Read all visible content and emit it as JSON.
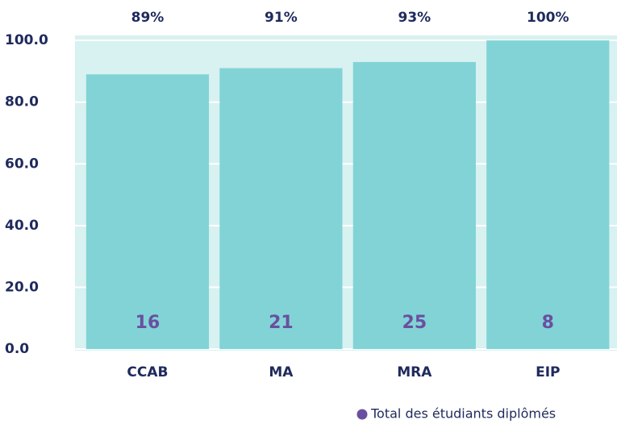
{
  "chart_data": {
    "type": "bar",
    "categories": [
      "CCAB",
      "MA",
      "MRA",
      "EIP"
    ],
    "values": [
      89,
      91,
      93,
      100
    ],
    "value_labels": [
      "89%",
      "91%",
      "93%",
      "100%"
    ],
    "color": "#82d3d6",
    "inner_labels": [
      16,
      21,
      25,
      8
    ],
    "inner_label_color": "#6a4fa0",
    "legend": "Total des étudiants diplômés",
    "ylim": [
      0,
      101.6
    ],
    "yticks": [
      {
        "value": 0,
        "label": "0.0"
      },
      {
        "value": 20,
        "label": "20.0"
      },
      {
        "value": 40,
        "label": "40.0"
      },
      {
        "value": 60,
        "label": "60.0"
      },
      {
        "value": 80,
        "label": "80.0"
      },
      {
        "value": 100,
        "label": "100.0"
      }
    ],
    "grid": true
  }
}
